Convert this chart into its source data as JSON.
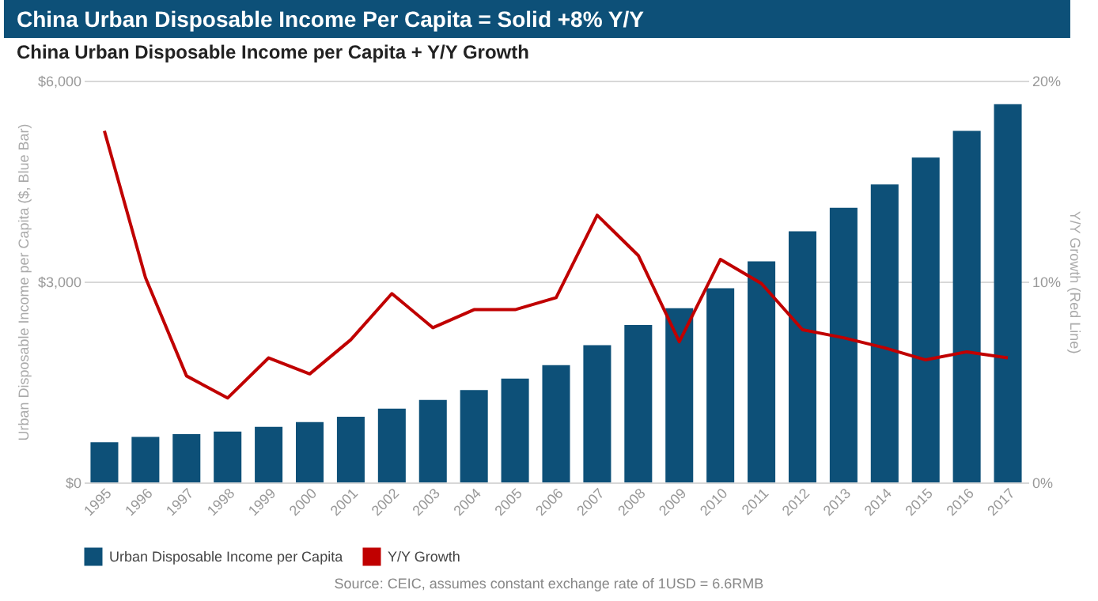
{
  "chart_data": {
    "type": "bar",
    "title": "China Urban Disposable Income Per Capita = Solid +8% Y/Y",
    "subtitle": "China Urban Disposable Income per Capita + Y/Y Growth",
    "ylabel": "Urban Disposable Income per Capita ($, Blue Bar)",
    "y2label": "Y/Y Growth (Red Line)",
    "annotations": [
      "Source: CEIC, assumes constant exchange rate of 1USD = 6.6RMB"
    ],
    "categories": [
      "1995",
      "1996",
      "1997",
      "1998",
      "1999",
      "2000",
      "2001",
      "2002",
      "2003",
      "2004",
      "2005",
      "2006",
      "2007",
      "2008",
      "2009",
      "2010",
      "2011",
      "2012",
      "2013",
      "2014",
      "2015",
      "2016",
      "2017"
    ],
    "series": [
      {
        "name": "Urban Disposable Income per Capita",
        "color": "#0d5078",
        "values": [
          600,
          680,
          720,
          760,
          830,
          900,
          980,
          1100,
          1230,
          1380,
          1550,
          1750,
          2050,
          2350,
          2600,
          2900,
          3300,
          3750,
          4100,
          4450,
          4850,
          5250,
          5650
        ]
      },
      {
        "name": "Y/Y Growth",
        "type": "line",
        "axis": "y2",
        "color": "#c00000",
        "values": [
          17.5,
          10.2,
          5.3,
          4.2,
          6.2,
          5.4,
          7.1,
          9.4,
          7.7,
          8.6,
          8.6,
          9.2,
          13.3,
          11.3,
          7.0,
          11.1,
          9.9,
          7.6,
          7.2,
          6.7,
          6.1,
          6.5,
          6.2
        ]
      }
    ],
    "ylim": [
      0,
      6000
    ],
    "yticks": [
      {
        "value": 0,
        "label": "$0"
      },
      {
        "value": 3000,
        "label": "$3,000"
      },
      {
        "value": 6000,
        "label": "$6,000"
      }
    ],
    "y2lim": [
      0,
      20
    ],
    "y2ticks": [
      {
        "value": 0,
        "label": "0%"
      },
      {
        "value": 10,
        "label": "10%"
      },
      {
        "value": 20,
        "label": "20%"
      }
    ],
    "grid": "y",
    "legend": "bottom"
  }
}
